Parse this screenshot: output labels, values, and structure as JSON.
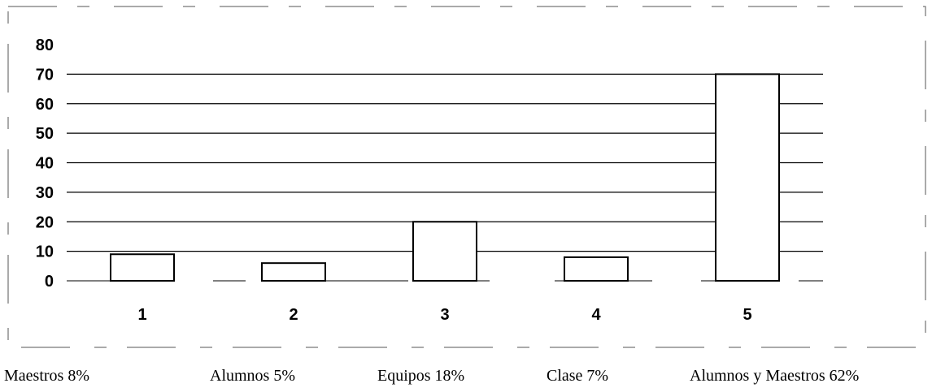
{
  "chart_data": {
    "type": "bar",
    "categories": [
      "1",
      "2",
      "3",
      "4",
      "5"
    ],
    "values": [
      9,
      6,
      20,
      8,
      70
    ],
    "title": "",
    "xlabel": "",
    "ylabel": "",
    "ylim": [
      0,
      80
    ],
    "yticks": [
      "0",
      "10",
      "20",
      "30",
      "40",
      "50",
      "60",
      "70",
      "80"
    ],
    "grid": true,
    "bar_fill": "#ffffff",
    "bar_stroke": "#000000"
  },
  "captions": {
    "maestros": "Maestros 8%",
    "alumnos": "Alumnos 5%",
    "equipos": "Equipos 18%",
    "clase": "Clase 7%",
    "alumnos_maestros": "Alumnos y Maestros  62%"
  }
}
